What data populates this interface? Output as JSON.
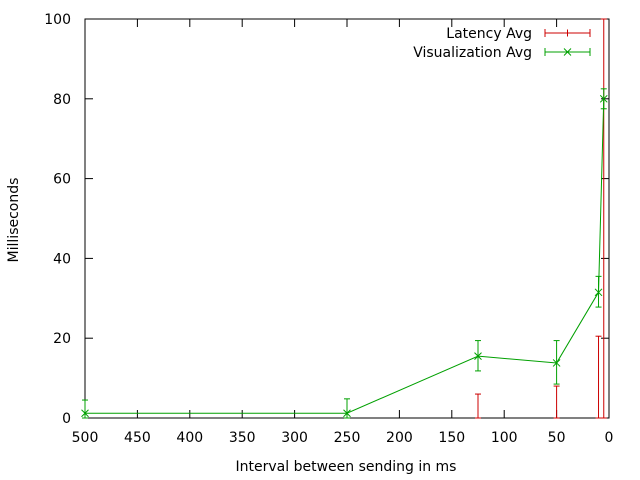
{
  "chart_data": {
    "type": "line",
    "title": "",
    "xlabel": "Interval between sending in ms",
    "ylabel": "Milliseconds",
    "xlim": [
      500,
      0
    ],
    "ylim": [
      0,
      100
    ],
    "x_reversed": true,
    "xticks": [
      500,
      450,
      400,
      350,
      300,
      250,
      200,
      150,
      100,
      50,
      0
    ],
    "yticks": [
      0,
      20,
      40,
      60,
      80,
      100
    ],
    "grid": false,
    "legend_position": "top-right",
    "series": [
      {
        "name": "Latency Avg",
        "color": "#cc0000",
        "marker": "plus",
        "errorbars_only": true,
        "points": [
          {
            "x": 125,
            "y": 0,
            "err_low": 0,
            "err_high": 6
          },
          {
            "x": 50,
            "y": 0,
            "err_low": 0,
            "err_high": 8
          },
          {
            "x": 10,
            "y": 0,
            "err_low": 0,
            "err_high": 20.5
          },
          {
            "x": 5,
            "y": 0,
            "err_low": 0,
            "err_high": 100
          }
        ]
      },
      {
        "name": "Visualization Avg",
        "color": "#00a000",
        "marker": "x",
        "errorbars_only": false,
        "points": [
          {
            "x": 500,
            "y": 1.2,
            "err_low": 0,
            "err_high": 4.5
          },
          {
            "x": 250,
            "y": 1.2,
            "err_low": 0,
            "err_high": 4.8
          },
          {
            "x": 125,
            "y": 15.5,
            "err_low": 11.8,
            "err_high": 19.4
          },
          {
            "x": 50,
            "y": 13.8,
            "err_low": 8.5,
            "err_high": 19.4
          },
          {
            "x": 10,
            "y": 31.5,
            "err_low": 27.8,
            "err_high": 35.5
          },
          {
            "x": 5,
            "y": 80,
            "err_low": 77.5,
            "err_high": 82.5
          }
        ]
      }
    ]
  }
}
